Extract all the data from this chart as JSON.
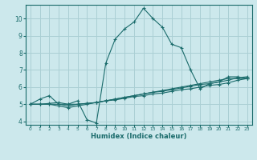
{
  "xlabel": "Humidex (Indice chaleur)",
  "bg_color": "#cce8ec",
  "grid_color": "#aacfd4",
  "line_color": "#1a6b6b",
  "xlim": [
    -0.5,
    23.5
  ],
  "ylim": [
    3.8,
    10.8
  ],
  "xticks": [
    0,
    1,
    2,
    3,
    4,
    5,
    6,
    7,
    8,
    9,
    10,
    11,
    12,
    13,
    14,
    15,
    16,
    17,
    18,
    19,
    20,
    21,
    22,
    23
  ],
  "yticks": [
    4,
    5,
    6,
    7,
    8,
    9,
    10
  ],
  "curves": [
    {
      "x": [
        0,
        1,
        2,
        3,
        4,
        5,
        6,
        7,
        8,
        9,
        10,
        11,
        12,
        13,
        14,
        15,
        16,
        17,
        18,
        19,
        20,
        21,
        22,
        23
      ],
      "y": [
        5.0,
        5.3,
        5.5,
        5.0,
        5.0,
        5.2,
        4.1,
        3.9,
        7.4,
        8.8,
        9.4,
        9.8,
        10.6,
        10.0,
        9.5,
        8.5,
        8.3,
        7.0,
        5.9,
        6.2,
        6.3,
        6.6,
        6.6,
        6.5
      ]
    },
    {
      "x": [
        0,
        1,
        2,
        3,
        4,
        5,
        6,
        7,
        8,
        9,
        10,
        11,
        12,
        13,
        14,
        15,
        16,
        17,
        18,
        19,
        20,
        21,
        22,
        23
      ],
      "y": [
        5.0,
        5.0,
        5.0,
        4.9,
        4.8,
        4.9,
        5.0,
        5.1,
        5.2,
        5.25,
        5.35,
        5.45,
        5.5,
        5.6,
        5.65,
        5.75,
        5.85,
        5.9,
        6.0,
        6.1,
        6.15,
        6.25,
        6.4,
        6.5
      ]
    },
    {
      "x": [
        0,
        1,
        2,
        3,
        4,
        5,
        6,
        7,
        8,
        9,
        10,
        11,
        12,
        13,
        14,
        15,
        16,
        17,
        18,
        19,
        20,
        21,
        22,
        23
      ],
      "y": [
        5.0,
        5.0,
        5.0,
        5.0,
        4.9,
        5.0,
        5.05,
        5.1,
        5.2,
        5.3,
        5.4,
        5.5,
        5.6,
        5.7,
        5.75,
        5.85,
        5.95,
        6.05,
        6.15,
        6.2,
        6.3,
        6.4,
        6.55,
        6.6
      ]
    },
    {
      "x": [
        0,
        1,
        2,
        3,
        4,
        5,
        6,
        7,
        8,
        9,
        10,
        11,
        12,
        13,
        14,
        15,
        16,
        17,
        18,
        19,
        20,
        21,
        22,
        23
      ],
      "y": [
        5.0,
        5.0,
        5.05,
        5.1,
        5.0,
        5.0,
        5.05,
        5.1,
        5.2,
        5.3,
        5.4,
        5.5,
        5.6,
        5.7,
        5.8,
        5.9,
        6.0,
        6.1,
        6.2,
        6.3,
        6.4,
        6.5,
        6.5,
        6.5
      ]
    }
  ]
}
